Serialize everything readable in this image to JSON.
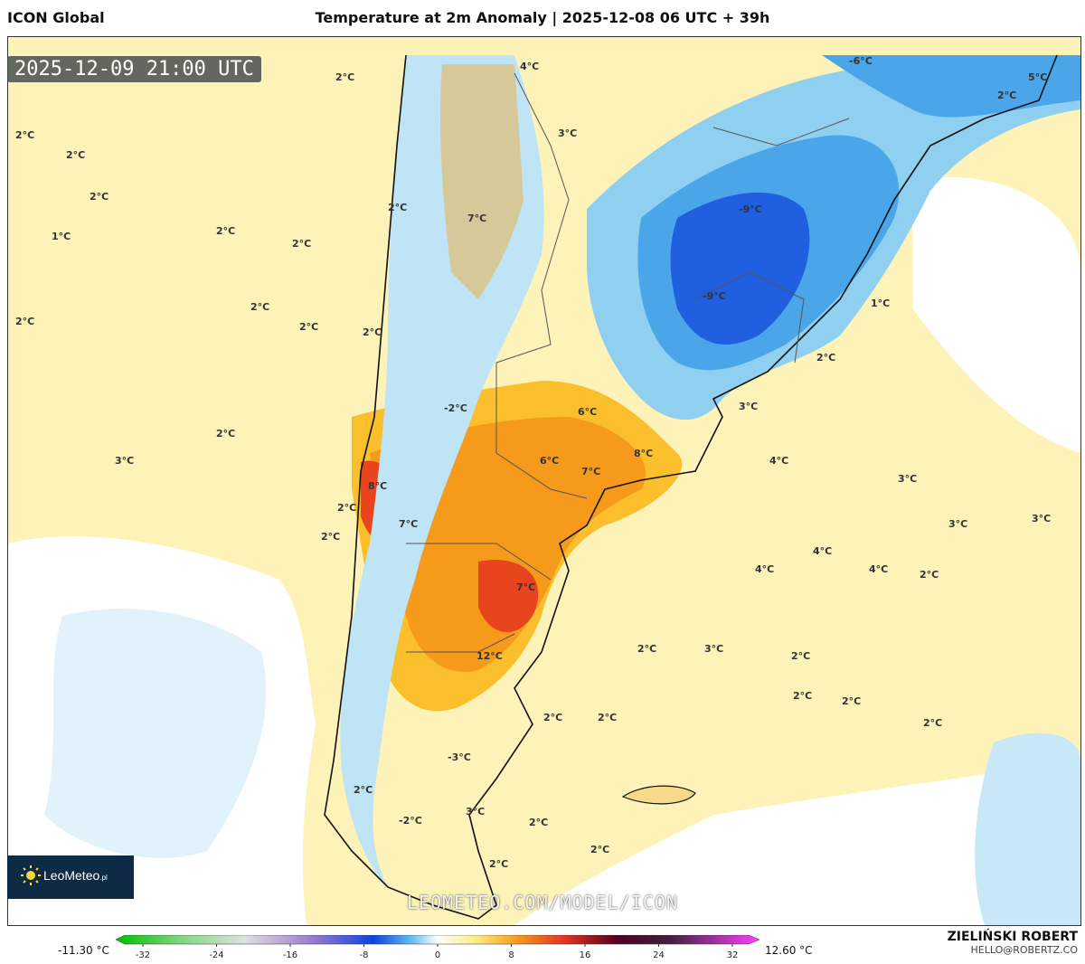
{
  "header": {
    "model": "ICON Global",
    "title": "Temperature at 2m Anomaly | 2025-12-08 06 UTC + 39h"
  },
  "valid_time": "2025-12-09 21:00 UTC",
  "watermark": "LEOMETEO.COM/MODEL/ICON",
  "logo": {
    "text": "LeoMeteo",
    "suffix": ".pl"
  },
  "author": {
    "name": "ZIELIŃSKI ROBERT",
    "email": "HELLO@ROBERTZ.CO"
  },
  "colorbar": {
    "min_label": "-11.30 °C",
    "max_label": "12.60 °C",
    "ticks": [
      "-32",
      "-24",
      "-16",
      "-8",
      "0",
      "8",
      "16",
      "24",
      "32"
    ]
  },
  "map_labels": [
    {
      "t": "2°C"
    },
    {
      "t": "4°C"
    },
    {
      "t": "3°C"
    },
    {
      "t": "-6°C"
    },
    {
      "t": "5°C"
    },
    {
      "t": "2°C"
    },
    {
      "t": "2°C"
    },
    {
      "t": "2°C"
    },
    {
      "t": "2°C"
    },
    {
      "t": "1°C"
    },
    {
      "t": "2°C"
    },
    {
      "t": "2°C"
    },
    {
      "t": "7°C"
    },
    {
      "t": "2°C"
    },
    {
      "t": "-9°C"
    },
    {
      "t": "-9°C"
    },
    {
      "t": "2°C"
    },
    {
      "t": "2°C"
    },
    {
      "t": "2°C"
    },
    {
      "t": "1°C"
    },
    {
      "t": "2°C"
    },
    {
      "t": "2°C"
    },
    {
      "t": "3°C"
    },
    {
      "t": "-2°C"
    },
    {
      "t": "6°C"
    },
    {
      "t": "2°C"
    },
    {
      "t": "3°C"
    },
    {
      "t": "8°C"
    },
    {
      "t": "6°C"
    },
    {
      "t": "7°C"
    },
    {
      "t": "4°C"
    },
    {
      "t": "8°C"
    },
    {
      "t": "3°C"
    },
    {
      "t": "7°C"
    },
    {
      "t": "3°C"
    },
    {
      "t": "3°C"
    },
    {
      "t": "2°C"
    },
    {
      "t": "4°C"
    },
    {
      "t": "4°C"
    },
    {
      "t": "4°C"
    },
    {
      "t": "2°C"
    },
    {
      "t": "7°C"
    },
    {
      "t": "2°C"
    },
    {
      "t": "3°C"
    },
    {
      "t": "2°C"
    },
    {
      "t": "12°C"
    },
    {
      "t": "2°C"
    },
    {
      "t": "2°C"
    },
    {
      "t": "2°C"
    },
    {
      "t": "2°C"
    },
    {
      "t": "2°C"
    },
    {
      "t": "-3°C"
    },
    {
      "t": "2°C"
    },
    {
      "t": "3°C"
    },
    {
      "t": "2°C"
    },
    {
      "t": "-2°C"
    },
    {
      "t": "2°C"
    },
    {
      "t": "2°C"
    },
    {
      "t": "2°C"
    }
  ]
}
